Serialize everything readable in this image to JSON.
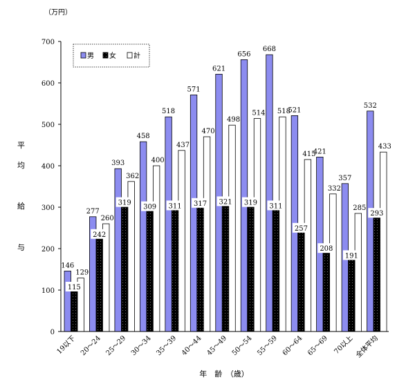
{
  "chart_data": {
    "type": "bar",
    "unit_label": "（万円）",
    "ylabel_chars": [
      "平",
      "均",
      "給",
      "与"
    ],
    "xlabel": "年　齢　（歳）",
    "ylim": [
      0,
      700
    ],
    "yticks": [
      0,
      100,
      200,
      300,
      400,
      500,
      600,
      700
    ],
    "categories": [
      "19以下",
      "20～24",
      "25～29",
      "30～34",
      "35～39",
      "40～44",
      "45～49",
      "50～54",
      "55～59",
      "60～64",
      "65～69",
      "70以上",
      "全体平均"
    ],
    "series": [
      {
        "name": "男",
        "color": "#8c8cf0",
        "values": [
          146,
          277,
          393,
          458,
          518,
          571,
          621,
          656,
          668,
          521,
          421,
          357,
          532
        ]
      },
      {
        "name": "女",
        "color": "#000000",
        "values": [
          115,
          242,
          319,
          309,
          311,
          317,
          321,
          319,
          311,
          257,
          208,
          191,
          293
        ]
      },
      {
        "name": "計",
        "color": "#ffffff",
        "values": [
          129,
          260,
          362,
          400,
          437,
          470,
          498,
          514,
          518,
          415,
          332,
          285,
          433
        ]
      }
    ],
    "legend_position": "top-left",
    "grid": false
  }
}
